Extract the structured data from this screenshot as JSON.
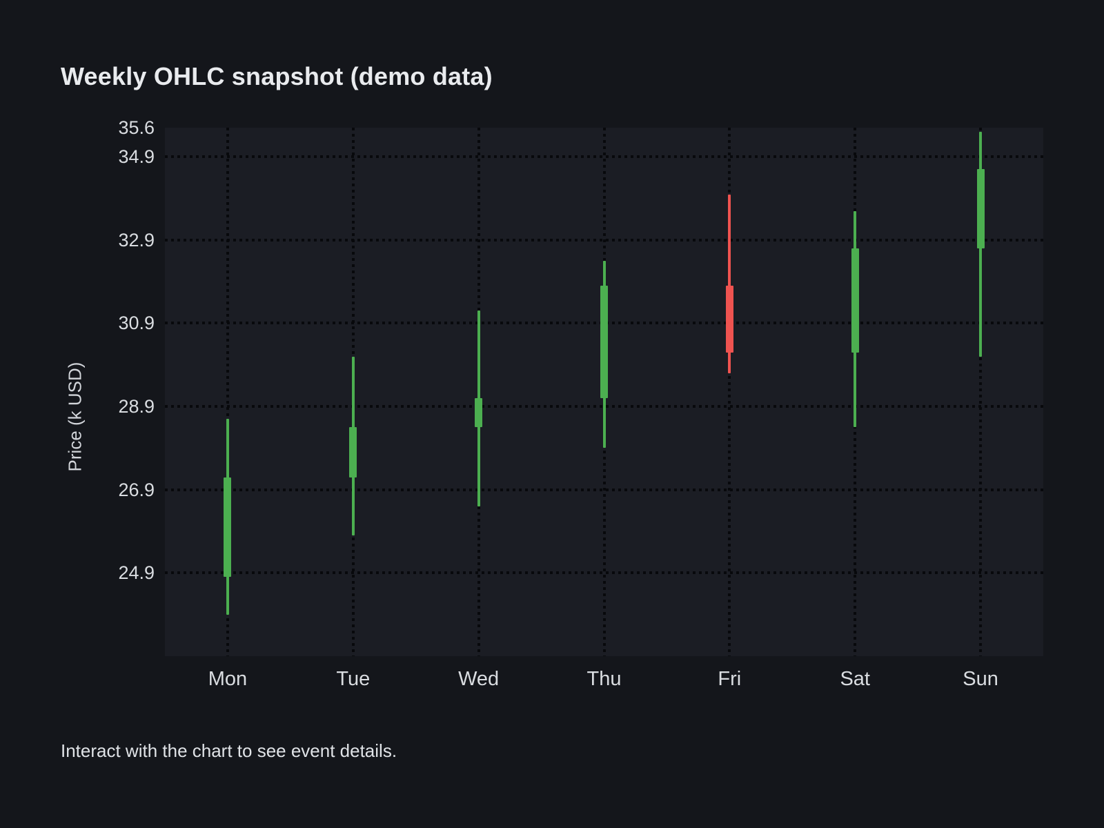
{
  "page": {
    "title": "Weekly OHLC snapshot (demo data)",
    "footer_hint": "Interact with the chart to see event details."
  },
  "chart_data": {
    "type": "candlestick",
    "title": "Weekly OHLC snapshot (demo data)",
    "ylabel": "Price (k USD)",
    "xlabel": "",
    "categories": [
      "Mon",
      "Tue",
      "Wed",
      "Thu",
      "Fri",
      "Sat",
      "Sun"
    ],
    "series": [
      {
        "name": "OHLC",
        "points": [
          {
            "day": "Mon",
            "open": 24.8,
            "high": 28.6,
            "low": 23.9,
            "close": 27.2,
            "direction": "up"
          },
          {
            "day": "Tue",
            "open": 27.2,
            "high": 30.1,
            "low": 25.8,
            "close": 28.4,
            "direction": "up"
          },
          {
            "day": "Wed",
            "open": 28.4,
            "high": 31.2,
            "low": 26.5,
            "close": 29.1,
            "direction": "up"
          },
          {
            "day": "Thu",
            "open": 29.1,
            "high": 32.4,
            "low": 27.9,
            "close": 31.8,
            "direction": "up"
          },
          {
            "day": "Fri",
            "open": 31.8,
            "high": 34.0,
            "low": 29.7,
            "close": 30.2,
            "direction": "down"
          },
          {
            "day": "Sat",
            "open": 30.2,
            "high": 33.6,
            "low": 28.4,
            "close": 32.7,
            "direction": "up"
          },
          {
            "day": "Sun",
            "open": 32.7,
            "high": 35.5,
            "low": 30.1,
            "close": 34.6,
            "direction": "up"
          }
        ]
      }
    ],
    "ylim": [
      22.9,
      35.6
    ],
    "ytick_labels": [
      "35.6",
      "34.9",
      "32.9",
      "30.9",
      "28.9",
      "26.9",
      "24.9"
    ],
    "ytick_gridlines": [
      34.9,
      32.9,
      30.9,
      28.9,
      26.9,
      24.9
    ],
    "grid": "dotted",
    "legend_position": "none",
    "colors": {
      "up": "#4caf50",
      "down": "#ef5350",
      "background": "#14161b",
      "plot_background": "#1b1d24",
      "gridline": "#08090c",
      "text": "#dadde1"
    }
  }
}
